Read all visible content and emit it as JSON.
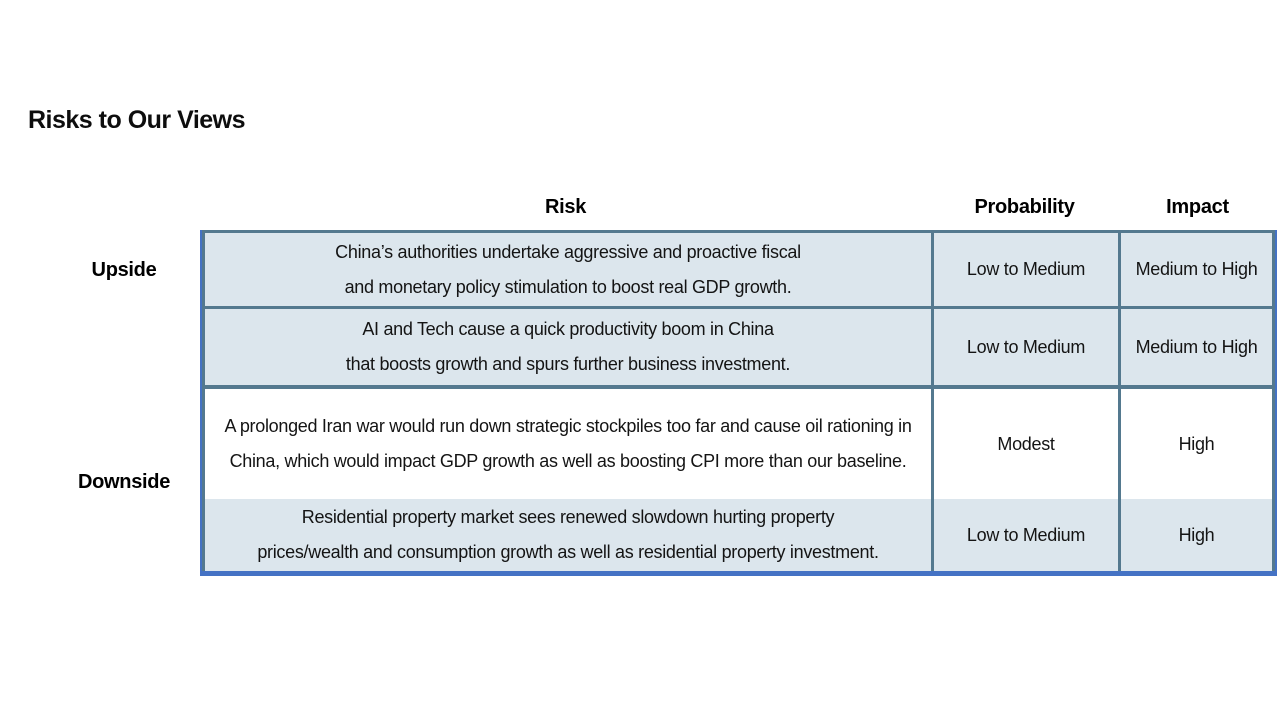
{
  "title": "Risks to Our Views",
  "table": {
    "headers": {
      "risk": "Risk",
      "probability": "Probability",
      "impact": "Impact"
    },
    "groups": [
      {
        "label": "Upside"
      },
      {
        "label": "Downside"
      }
    ],
    "rows": [
      {
        "group": "Upside",
        "risk": "China’s authorities undertake aggressive and proactive fiscal and monetary policy stimulation to boost real GDP growth.",
        "probability": "Low to Medium",
        "impact": "Medium to High"
      },
      {
        "group": "Upside",
        "risk": "AI and Tech cause a quick productivity boom in China that boosts growth and spurs further business investment.",
        "probability": "Low to Medium",
        "impact": "Medium to High"
      },
      {
        "group": "Downside",
        "risk": "A prolonged Iran war would run down strategic stockpiles too far and cause oil rationing in China, which would impact GDP growth as well as boosting CPI more than our baseline.",
        "probability": "Modest",
        "impact": "High"
      },
      {
        "group": "Downside",
        "risk": "Residential property market sees renewed slowdown hurting property prices/wealth and consumption growth as well as residential property investment.",
        "probability": "Low to Medium",
        "impact": "High"
      }
    ],
    "colors": {
      "accent_outer_border": "#4472c4",
      "inner_border": "#54798f",
      "banded_row_fill": "#dce6ed",
      "plain_row_fill": "#ffffff",
      "text": "#141414"
    }
  }
}
